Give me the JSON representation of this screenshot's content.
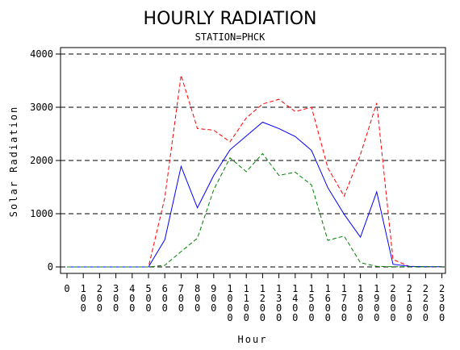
{
  "chart_data": {
    "type": "line",
    "title": "HOURLY RADIATION",
    "subtitle": "STATION=PHCK",
    "xlabel": "Hour",
    "ylabel": "Solar Radiation",
    "x": [
      "0",
      "100",
      "200",
      "300",
      "400",
      "500",
      "600",
      "700",
      "800",
      "900",
      "1000",
      "1100",
      "1200",
      "1300",
      "1400",
      "1500",
      "1600",
      "1700",
      "1800",
      "1900",
      "2000",
      "2100",
      "2200",
      "2300"
    ],
    "ylim": [
      0,
      4000
    ],
    "yticks": [
      "0",
      "1000",
      "2000",
      "3000",
      "4000"
    ],
    "grid": "horizontal dashed",
    "series": [
      {
        "color": "#ff0000",
        "dash": "dashed",
        "values": [
          0,
          0,
          0,
          0,
          0,
          0,
          1300,
          3600,
          2600,
          2570,
          2350,
          2800,
          3060,
          3150,
          2920,
          3000,
          1860,
          1330,
          2110,
          3080,
          140,
          10,
          5,
          5
        ]
      },
      {
        "color": "#0000ff",
        "dash": "solid",
        "values": [
          0,
          0,
          0,
          0,
          0,
          0,
          510,
          1890,
          1110,
          1720,
          2200,
          2460,
          2720,
          2600,
          2450,
          2190,
          1490,
          990,
          560,
          1410,
          50,
          10,
          5,
          5
        ]
      },
      {
        "color": "#008000",
        "dash": "dashed",
        "values": [
          0,
          0,
          0,
          0,
          0,
          0,
          30,
          290,
          540,
          1450,
          2050,
          1790,
          2130,
          1720,
          1780,
          1540,
          500,
          580,
          80,
          10,
          5,
          5,
          5,
          5
        ]
      }
    ]
  }
}
